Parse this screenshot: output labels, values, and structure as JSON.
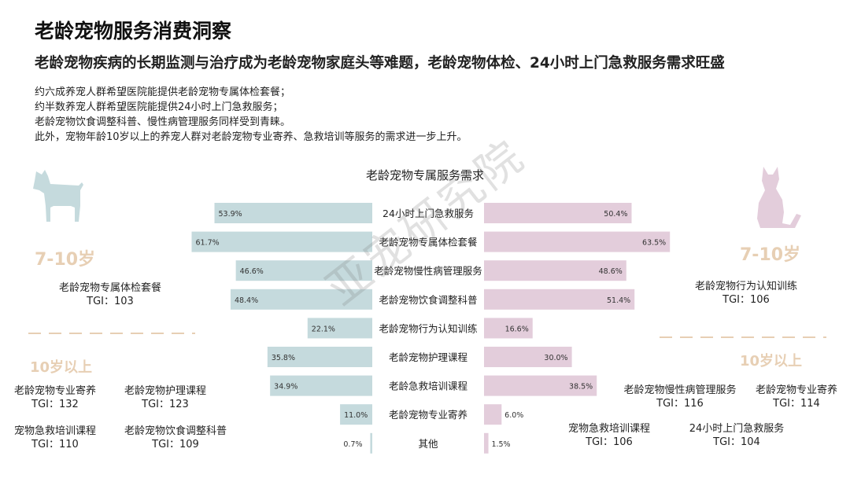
{
  "title": "老龄宠物服务消费洞察",
  "subtitle": "老龄宠物疾病的长期监测与治疗成为老龄宠物家庭头等难题，老龄宠物体检、24小时上门急救服务需求旺盛",
  "bullets": [
    "约六成养宠人群希望医院能提供老龄宠物专属体检套餐；",
    "约半数养宠人群希望医院能提供24小时上门急救服务；",
    "老龄宠物饮食调整科普、慢性病管理服务同样受到青睐。",
    "此外，宠物年龄10岁以上的养宠人群对老龄宠物专业寄养、急救培训等服务的需求进一步上升。"
  ],
  "watermark": "亚宠研究院",
  "colors": {
    "dog_bar": "#c5dadd",
    "cat_bar": "#e3cddb",
    "accent": "#e7cfb4"
  },
  "icons": {
    "dog": "dog-silhouette-icon",
    "cat": "cat-silhouette-icon"
  },
  "chart_data": {
    "type": "bar",
    "title": "老龄宠物专属服务需求",
    "orientation": "horizontal-butterfly",
    "categories": [
      "24小时上门急救服务",
      "老龄宠物专属体检套餐",
      "老龄宠物慢性病管理服务",
      "老龄宠物饮食调整科普",
      "老龄宠物行为认知训练",
      "老龄宠物护理课程",
      "老龄急救培训课程",
      "老龄宠物专业寄养",
      "其他"
    ],
    "series": [
      {
        "values": [
          53.9,
          61.7,
          46.6,
          48.4,
          22.1,
          35.8,
          34.9,
          11.0,
          0.7
        ],
        "labels": [
          "53.9%",
          "61.7%",
          "46.6%",
          "48.4%",
          "22.1%",
          "35.8%",
          "34.9%",
          "11.0%",
          "0.7%"
        ]
      },
      {
        "values": [
          50.4,
          63.5,
          48.6,
          51.4,
          16.6,
          30.0,
          38.5,
          6.0,
          1.5
        ],
        "labels": [
          "50.4%",
          "63.5%",
          "48.6%",
          "51.4%",
          "16.6%",
          "30.0%",
          "38.5%",
          "6.0%",
          "1.5%"
        ]
      }
    ]
  },
  "dog_side": {
    "age_7_10": "7-10岁",
    "top_item": {
      "name": "老龄宠物专属体检套餐",
      "tgi": "TGI：103"
    },
    "age_10plus": "10岁以上",
    "items_10plus": [
      {
        "name": "老龄宠物专业寄养",
        "tgi": "TGI：132"
      },
      {
        "name": "老龄宠物护理课程",
        "tgi": "TGI：123"
      },
      {
        "name": "宠物急救培训课程",
        "tgi": "TGI：110"
      },
      {
        "name": "老龄宠物饮食调整科普",
        "tgi": "TGI：109"
      }
    ]
  },
  "cat_side": {
    "age_7_10": "7-10岁",
    "top_item": {
      "name": "老龄宠物行为认知训练",
      "tgi": "TGI：106"
    },
    "age_10plus": "10岁以上",
    "items_10plus": [
      {
        "name": "老龄宠物慢性病管理服务",
        "tgi": "TGI：116"
      },
      {
        "name": "老龄宠物专业寄养",
        "tgi": "TGI：114"
      },
      {
        "name": "宠物急救培训课程",
        "tgi": "TGI：106"
      },
      {
        "name": "24小时上门急救服务",
        "tgi": "TGI：104"
      }
    ]
  }
}
